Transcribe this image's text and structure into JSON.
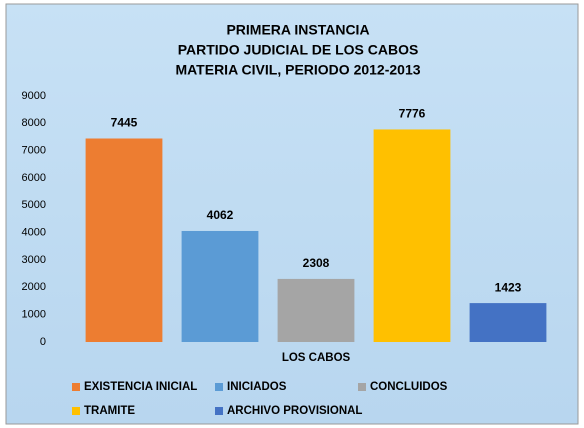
{
  "chart_data": {
    "type": "bar",
    "title": [
      "PRIMERA INSTANCIA",
      "PARTIDO JUDICIAL DE LOS CABOS",
      "MATERIA CIVIL, PERIODO 2012-2013"
    ],
    "categories": [
      "LOS CABOS"
    ],
    "series": [
      {
        "name": "EXISTENCIA INICIAL",
        "color": "#ed7d31",
        "values": [
          7445
        ]
      },
      {
        "name": "INICIADOS",
        "color": "#5b9bd5",
        "values": [
          4062
        ]
      },
      {
        "name": "CONCLUIDOS",
        "color": "#a5a5a5",
        "values": [
          2308
        ]
      },
      {
        "name": "TRAMITE",
        "color": "#ffc000",
        "values": [
          7776
        ]
      },
      {
        "name": "ARCHIVO PROVISIONAL",
        "color": "#4472c4",
        "values": [
          1423
        ]
      }
    ],
    "ylim": [
      0,
      9000
    ],
    "yticks": [
      0,
      1000,
      2000,
      3000,
      4000,
      5000,
      6000,
      7000,
      8000,
      9000
    ],
    "grid": false,
    "legend": "bottom"
  }
}
